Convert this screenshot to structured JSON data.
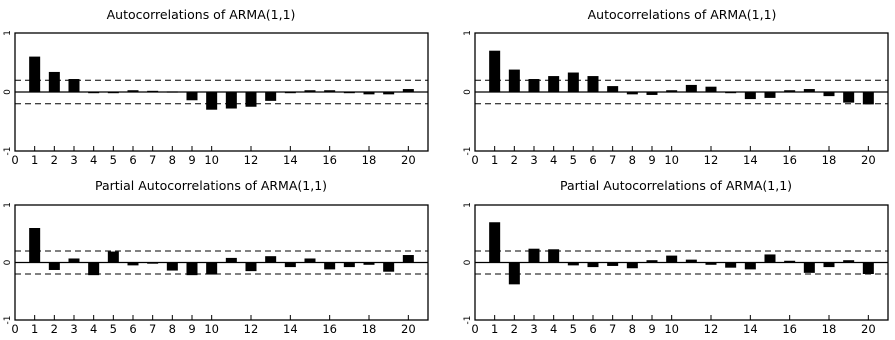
{
  "chart_data": [
    {
      "type": "bar",
      "title": "Autocorrelations of ARMA(1,1)",
      "x": [
        1,
        2,
        3,
        4,
        5,
        6,
        7,
        8,
        9,
        10,
        11,
        12,
        13,
        14,
        15,
        16,
        17,
        18,
        19,
        20
      ],
      "values": [
        0.6,
        0.34,
        0.22,
        -0.01,
        -0.01,
        0.03,
        0.02,
        0.01,
        -0.14,
        -0.3,
        -0.28,
        -0.25,
        -0.15,
        -0.01,
        0.03,
        0.03,
        -0.02,
        -0.04,
        -0.04,
        0.05
      ],
      "ylim": [
        -1,
        1
      ],
      "xlim": [
        0,
        21
      ],
      "xticks": [
        0,
        1,
        2,
        3,
        4,
        5,
        6,
        7,
        8,
        9,
        10,
        12,
        14,
        16,
        18,
        20
      ],
      "yticks": [
        -1,
        0,
        1
      ],
      "confidence_band": 0.2,
      "grid": false
    },
    {
      "type": "bar",
      "title": "Autocorrelations of ARMA(1,1)",
      "x": [
        1,
        2,
        3,
        4,
        5,
        6,
        7,
        8,
        9,
        10,
        11,
        12,
        13,
        14,
        15,
        16,
        17,
        18,
        19,
        20
      ],
      "values": [
        0.7,
        0.38,
        0.22,
        0.27,
        0.33,
        0.27,
        0.1,
        -0.04,
        -0.05,
        0.03,
        0.12,
        0.09,
        -0.02,
        -0.12,
        -0.1,
        0.03,
        0.05,
        -0.07,
        -0.18,
        -0.21
      ],
      "ylim": [
        -1,
        1
      ],
      "xlim": [
        0,
        21
      ],
      "xticks": [
        0,
        1,
        2,
        3,
        4,
        5,
        6,
        7,
        8,
        9,
        10,
        12,
        14,
        16,
        18,
        20
      ],
      "yticks": [
        -1,
        0,
        1
      ],
      "confidence_band": 0.2,
      "grid": false
    },
    {
      "type": "bar",
      "title": "Partial Autocorrelations of ARMA(1,1)",
      "x": [
        1,
        2,
        3,
        4,
        5,
        6,
        7,
        8,
        9,
        10,
        11,
        12,
        13,
        14,
        15,
        16,
        17,
        18,
        19,
        20
      ],
      "values": [
        0.6,
        -0.13,
        0.07,
        -0.22,
        0.19,
        -0.05,
        -0.02,
        -0.14,
        -0.22,
        -0.21,
        0.08,
        -0.15,
        0.11,
        -0.08,
        0.07,
        -0.12,
        -0.08,
        -0.04,
        -0.16,
        0.13
      ],
      "ylim": [
        -1,
        1
      ],
      "xlim": [
        0,
        21
      ],
      "xticks": [
        0,
        1,
        2,
        3,
        4,
        5,
        6,
        7,
        8,
        9,
        10,
        12,
        14,
        16,
        18,
        20
      ],
      "yticks": [
        -1,
        0,
        1
      ],
      "confidence_band": 0.2,
      "grid": false
    },
    {
      "type": "bar",
      "title": "Partial Autocorrelations of ARMA(1,1)",
      "x": [
        1,
        2,
        3,
        4,
        5,
        6,
        7,
        8,
        9,
        10,
        11,
        12,
        13,
        14,
        15,
        16,
        17,
        18,
        19,
        20
      ],
      "values": [
        0.7,
        -0.38,
        0.24,
        0.23,
        -0.05,
        -0.08,
        -0.06,
        -0.1,
        0.04,
        0.12,
        0.05,
        -0.04,
        -0.09,
        -0.12,
        0.14,
        0.03,
        -0.18,
        -0.08,
        0.04,
        -0.2
      ],
      "ylim": [
        -1,
        1
      ],
      "xlim": [
        0,
        21
      ],
      "xticks": [
        0,
        1,
        2,
        3,
        4,
        5,
        6,
        7,
        8,
        9,
        10,
        12,
        14,
        16,
        18,
        20
      ],
      "yticks": [
        -1,
        0,
        1
      ],
      "confidence_band": 0.2,
      "grid": false
    }
  ],
  "colors": {
    "bar": "#000000",
    "axis": "#000000",
    "background": "#ffffff"
  }
}
